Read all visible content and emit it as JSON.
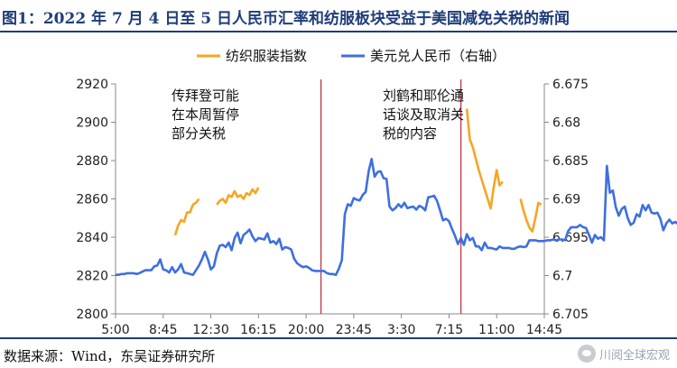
{
  "header": {
    "title": "图1：2022 年 7 月 4 日至 5 日人民币汇率和纺服板块受益于美国减免关税的新闻"
  },
  "footer": {
    "source": "数据来源：Wind，东吴证券研究所",
    "watermark": "川阅全球宏观"
  },
  "colors": {
    "textile": "#F5A623",
    "usdcny": "#3E6FE0",
    "event": "#C0283C",
    "axis": "#888888"
  },
  "chart_data": {
    "type": "line",
    "title": "图1：2022 年 7 月 4 日至 5 日人民币汇率和纺服板块受益于美国减免关税的新闻",
    "legend": {
      "placement": "top-right"
    },
    "grid": false,
    "x_axis": {
      "ticks": [
        "5:00",
        "8:45",
        "12:30",
        "16:15",
        "20:00",
        "23:45",
        "3:30",
        "7:15",
        "11:00",
        "14:45"
      ],
      "range_index": [
        0,
        72
      ]
    },
    "y_left": {
      "ylim": [
        2800,
        2920
      ],
      "ticks": [
        2800,
        2820,
        2840,
        2860,
        2880,
        2900,
        2920
      ]
    },
    "y_right": {
      "ylim": [
        6.705,
        6.675
      ],
      "inverted": true,
      "ticks": [
        "6.675",
        "6.68",
        "6.685",
        "6.69",
        "6.695",
        "6.7",
        "6.705"
      ]
    },
    "series": [
      {
        "name": "纺织服装指数",
        "axis": "left",
        "segments": [
          {
            "x": [
              10,
              10.5,
              11,
              11.5,
              12,
              12.5,
              13,
              13.5,
              14
            ],
            "y": [
              2841,
              2846,
              2849,
              2848,
              2853,
              2853,
              2857,
              2858,
              2860
            ]
          },
          {
            "x": [
              17,
              17.5,
              18,
              18.5,
              19,
              19.5,
              20,
              20.5,
              21,
              21.5,
              22,
              22.5,
              23,
              23.5,
              24
            ],
            "y": [
              2857,
              2859,
              2860,
              2858,
              2862,
              2861,
              2864,
              2861,
              2862,
              2860,
              2863,
              2862,
              2865,
              2863,
              2866
            ]
          },
          {
            "x": [
              59,
              59.5,
              60,
              60.5,
              61,
              61.5,
              62,
              62.5,
              63,
              63.5,
              64,
              64.5,
              65
            ],
            "y": [
              2907,
              2891,
              2887,
              2881,
              2875,
              2870,
              2865,
              2860,
              2855,
              2866,
              2875,
              2867,
              2869
            ]
          },
          {
            "x": [
              68,
              68.5,
              69,
              69.5,
              70,
              70.5,
              71,
              71.5
            ],
            "y": [
              2860,
              2854,
              2849,
              2845,
              2843,
              2850,
              2858,
              2857
            ]
          }
        ]
      },
      {
        "name": "美元兑人民币（右轴）",
        "axis": "right",
        "x_start": 0,
        "x_step": 0.5,
        "y": [
          6.6999,
          6.6999,
          6.6998,
          6.6998,
          6.6997,
          6.6997,
          6.6997,
          6.6998,
          6.6997,
          6.6995,
          6.6993,
          6.6993,
          6.6993,
          6.6988,
          6.6987,
          6.6979,
          6.6992,
          6.6993,
          6.6996,
          6.6989,
          6.6996,
          6.6992,
          6.6985,
          6.6996,
          6.6997,
          6.6998,
          6.6999,
          6.6993,
          6.6987,
          6.6979,
          6.6969,
          6.6979,
          6.6992,
          6.6988,
          6.6971,
          6.6961,
          6.696,
          6.6963,
          6.6957,
          6.6967,
          6.6951,
          6.6944,
          6.6958,
          6.6947,
          6.6944,
          6.694,
          6.6949,
          6.6955,
          6.6951,
          6.6952,
          6.6953,
          6.6945,
          6.6957,
          6.6955,
          6.6959,
          6.6952,
          6.6966,
          6.6963,
          6.6964,
          6.6966,
          6.6978,
          6.6984,
          6.6987,
          6.6989,
          6.6988,
          6.699,
          6.6993,
          6.6994,
          6.6994,
          6.6994,
          6.6994,
          6.6997,
          6.6998,
          6.6998,
          6.6999,
          6.6991,
          6.698,
          6.692,
          6.6907,
          6.6909,
          6.6899,
          6.6901,
          6.6902,
          6.6895,
          6.6891,
          6.6864,
          6.6848,
          6.6871,
          6.6865,
          6.6864,
          6.6873,
          6.6874,
          6.691,
          6.6915,
          6.6912,
          6.6907,
          6.6911,
          6.6905,
          6.6912,
          6.6911,
          6.691,
          6.6914,
          6.6909,
          6.6911,
          6.6915,
          6.6898,
          6.6897,
          6.6896,
          6.6903,
          6.6915,
          6.6928,
          6.6926,
          6.6929,
          6.6939,
          6.6948,
          6.6959,
          6.6951,
          6.696,
          6.6946,
          6.6954,
          6.6951,
          6.6962,
          6.6962,
          6.6967,
          6.6957,
          6.6964,
          6.6964,
          6.6965,
          6.6966,
          6.6962,
          6.6964,
          6.6964,
          6.6964,
          6.6965,
          6.6965,
          6.6963,
          6.6962,
          6.6963,
          6.6962,
          6.6954,
          6.6954,
          6.6954,
          6.6955,
          6.6955,
          6.6955,
          6.6954,
          6.6954,
          6.6953,
          6.6954,
          6.6953,
          6.6953,
          6.6954,
          6.6942,
          6.6937,
          6.6937,
          6.6937,
          6.6934,
          6.6937,
          6.6938,
          6.6947,
          6.6957,
          6.6947,
          6.6952,
          6.695,
          6.6954,
          6.6857,
          6.6892,
          6.6889,
          6.6911,
          6.6922,
          6.6913,
          6.691,
          6.6925,
          6.6934,
          6.6931,
          6.692,
          6.6923,
          6.6908,
          6.6915,
          6.6908,
          6.6918,
          6.6919,
          6.6918,
          6.6926,
          6.6941,
          6.6932,
          6.6927,
          6.6932,
          6.693,
          6.6933,
          6.6934,
          6.6932,
          6.6933,
          6.6927,
          6.6928
        ]
      }
    ],
    "events": [
      {
        "x": 34.5,
        "label": [
          "传拜登可能",
          "在本周暂停",
          "部分关税"
        ]
      },
      {
        "x": 58,
        "label": [
          "刘鹤和耶伦通",
          "话谈及取消关",
          "税的内容"
        ]
      }
    ]
  }
}
